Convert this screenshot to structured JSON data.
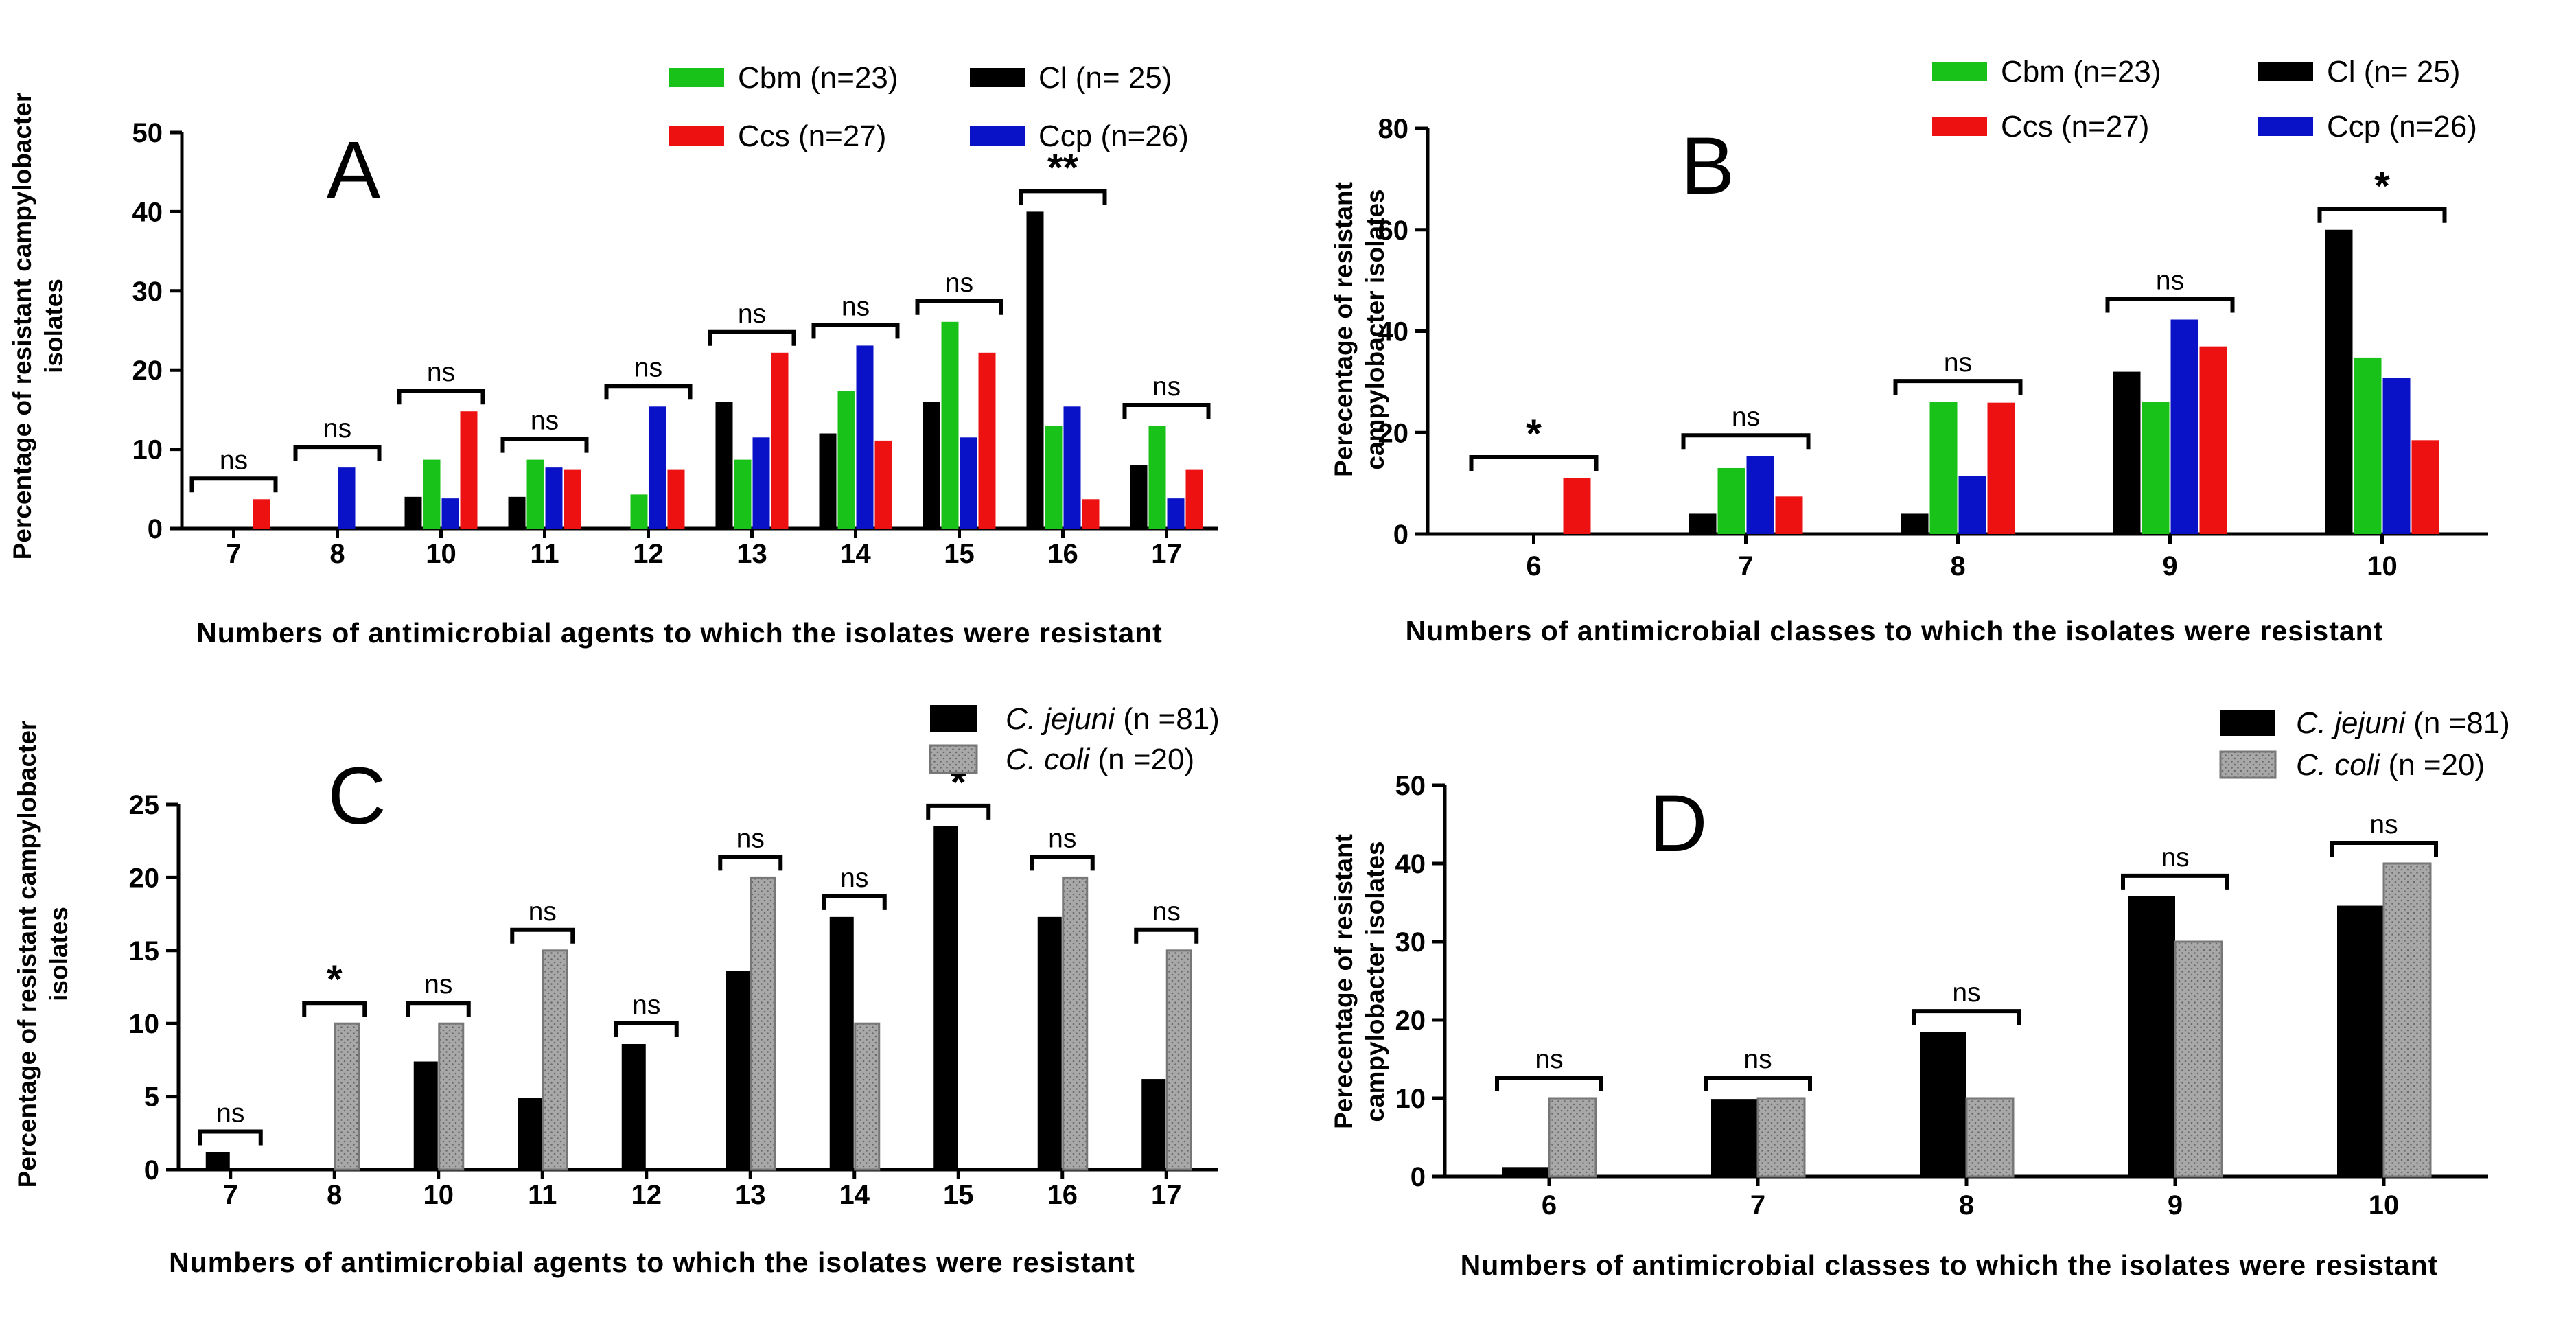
{
  "colors": {
    "Cl": "#000000",
    "Cbm": "#19c219",
    "Ccs": "#ee1111",
    "Ccp": "#0a12c8",
    "jejuni": "#000000",
    "coli": "#a9a9a9"
  },
  "chart_data": [
    {
      "id": "A",
      "type": "bar",
      "panel_letter": "A",
      "title": "",
      "xlabel": "Numbers of antimicrobial agents to which the isolates were resistant",
      "ylabel": "Percentage of resistant campylobacter isolates",
      "ylim": [
        0,
        50
      ],
      "yticks": [
        0,
        10,
        20,
        30,
        40,
        50
      ],
      "legend": "top-right",
      "legend_labels": [
        "Cbm (n=23)",
        "Cl (n= 25)",
        "Ccs (n=27)",
        "Ccp (n=26)"
      ],
      "legend_keys": [
        "Cbm",
        "Cl",
        "Ccs",
        "Ccp"
      ],
      "categories": [
        "7",
        "8",
        "10",
        "11",
        "12",
        "13",
        "14",
        "15",
        "16",
        "17"
      ],
      "series": [
        {
          "name": "Cl (n= 25)",
          "key": "Cl",
          "values": [
            0,
            0,
            4,
            4,
            0,
            16,
            12,
            16,
            40,
            8
          ]
        },
        {
          "name": "Cbm (n=23)",
          "key": "Cbm",
          "values": [
            0,
            0,
            8.7,
            8.7,
            4.3,
            8.7,
            17.4,
            26.1,
            13,
            13
          ]
        },
        {
          "name": "Ccp (n=26)",
          "key": "Ccp",
          "values": [
            0,
            7.7,
            3.8,
            7.7,
            15.4,
            11.5,
            23.1,
            11.5,
            15.4,
            3.8
          ]
        },
        {
          "name": "Ccs (n=27)",
          "key": "Ccs",
          "values": [
            3.7,
            0,
            14.8,
            7.4,
            7.4,
            22.2,
            11.1,
            22.2,
            3.7,
            7.4
          ]
        }
      ],
      "significance": [
        "ns",
        "ns",
        "ns",
        "ns",
        "ns",
        "ns",
        "ns",
        "ns",
        "**",
        "ns"
      ]
    },
    {
      "id": "B",
      "type": "bar",
      "panel_letter": "B",
      "title": "",
      "xlabel": "Numbers of antimicrobial classes to which the isolates were resistant",
      "ylabel": "Perecentage of resistant campylobacter isolates",
      "ylim": [
        0,
        80
      ],
      "yticks": [
        0,
        20,
        40,
        60,
        80
      ],
      "legend": "top-right",
      "legend_labels": [
        "Cbm (n=23)",
        "Cl (n= 25)",
        "Ccs (n=27)",
        "Ccp (n=26)"
      ],
      "legend_keys": [
        "Cbm",
        "Cl",
        "Ccs",
        "Ccp"
      ],
      "categories": [
        "6",
        "7",
        "8",
        "9",
        "10"
      ],
      "series": [
        {
          "name": "Cl (n= 25)",
          "key": "Cl",
          "values": [
            0,
            4,
            4,
            32,
            60
          ]
        },
        {
          "name": "Cbm (n=23)",
          "key": "Cbm",
          "values": [
            0,
            13,
            26.1,
            26.1,
            34.8
          ]
        },
        {
          "name": "Ccp (n=26)",
          "key": "Ccp",
          "values": [
            0,
            15.4,
            11.5,
            42.3,
            30.8
          ]
        },
        {
          "name": "Ccs (n=27)",
          "key": "Ccs",
          "values": [
            11.1,
            7.4,
            25.9,
            37,
            18.5
          ]
        }
      ],
      "significance": [
        "*",
        "ns",
        "ns",
        "ns",
        "*"
      ]
    },
    {
      "id": "C",
      "type": "bar",
      "panel_letter": "C",
      "title": "",
      "xlabel": "Numbers of antimicrobial agents to which the isolates were resistant",
      "ylabel": "Percentage of resistant campylobacter isolates",
      "ylim": [
        0,
        25
      ],
      "yticks": [
        0,
        5,
        10,
        15,
        20,
        25
      ],
      "legend": "top-right",
      "legend_labels": [
        {
          "italic": "C. jejuni",
          "rest": " (n =81)"
        },
        {
          "italic": "C. coli",
          "rest": " (n =20)"
        }
      ],
      "legend_keys": [
        "jejuni",
        "coli"
      ],
      "categories": [
        "7",
        "8",
        "10",
        "11",
        "12",
        "13",
        "14",
        "15",
        "16",
        "17"
      ],
      "series": [
        {
          "name": "C. jejuni (n =81)",
          "key": "jejuni",
          "values": [
            1.2,
            0,
            7.4,
            4.9,
            8.6,
            13.6,
            17.3,
            23.5,
            17.3,
            6.2
          ]
        },
        {
          "name": "C. coli (n =20)",
          "key": "coli",
          "values": [
            0,
            10,
            10,
            15,
            0,
            20,
            10,
            0,
            20,
            15
          ]
        }
      ],
      "significance": [
        "ns",
        "*",
        "ns",
        "ns",
        "ns",
        "ns",
        "ns",
        "*",
        "ns",
        "ns"
      ]
    },
    {
      "id": "D",
      "type": "bar",
      "panel_letter": "D",
      "title": "",
      "xlabel": "Numbers of antimicrobial classes to which the isolates were resistant",
      "ylabel": "Perecentage of resistant campylobacter isolates",
      "ylim": [
        0,
        50
      ],
      "yticks": [
        0,
        10,
        20,
        30,
        40,
        50
      ],
      "legend": "top-right",
      "legend_labels": [
        {
          "italic": "C. jejuni",
          "rest": " (n =81)"
        },
        {
          "italic": "C. coli",
          "rest": " (n =20)"
        }
      ],
      "legend_keys": [
        "jejuni",
        "coli"
      ],
      "categories": [
        "6",
        "7",
        "8",
        "9",
        "10"
      ],
      "series": [
        {
          "name": "C. jejuni (n =81)",
          "key": "jejuni",
          "values": [
            1.2,
            9.9,
            18.5,
            35.8,
            34.6
          ]
        },
        {
          "name": "C. coli (n =20)",
          "key": "coli",
          "values": [
            10,
            10,
            10,
            30,
            40
          ]
        }
      ],
      "significance": [
        "ns",
        "ns",
        "ns",
        "ns",
        "ns"
      ]
    }
  ]
}
